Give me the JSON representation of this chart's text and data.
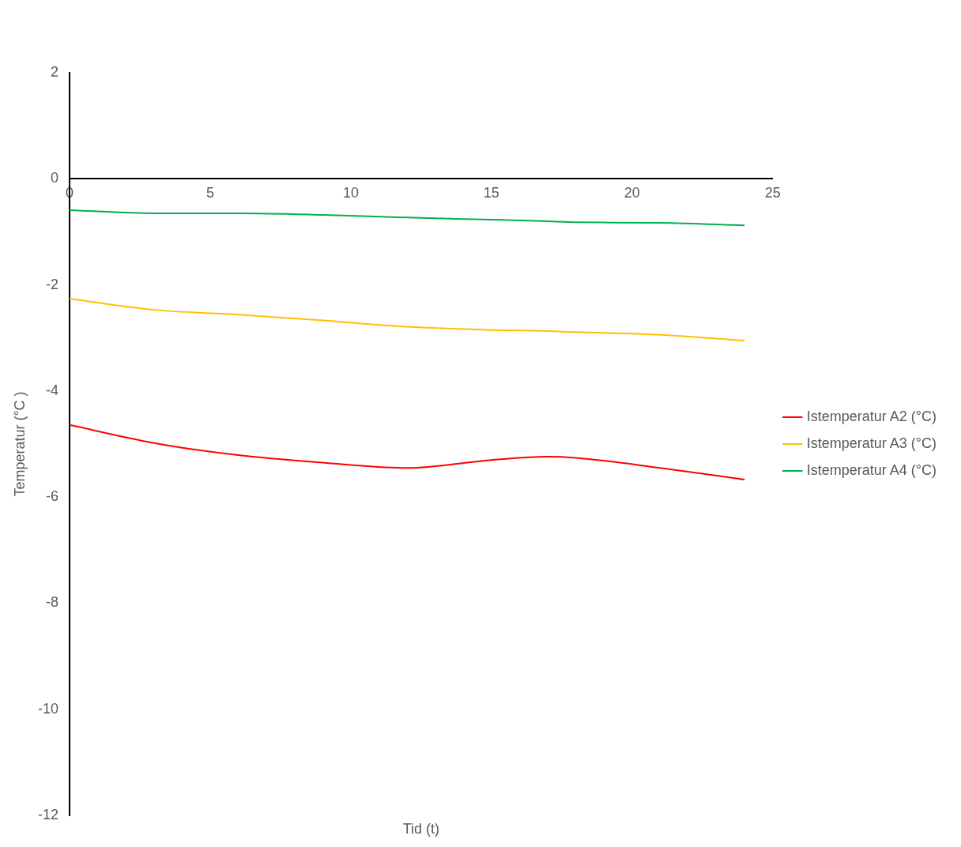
{
  "chart_data": {
    "type": "line",
    "xlabel": "Tid (t)",
    "ylabel": "Temperatur (°C )",
    "x": [
      0,
      3,
      6,
      9,
      12,
      15,
      17,
      18,
      21,
      24
    ],
    "series": [
      {
        "name": "Istemperatur A2 (°C)",
        "color": "#ff0000",
        "values": [
          -4.64,
          -4.98,
          -5.21,
          -5.35,
          -5.45,
          -5.3,
          -5.24,
          -5.26,
          -5.45,
          -5.67
        ]
      },
      {
        "name": "Istemperatur A3 (°C)",
        "color": "#ffc000",
        "values": [
          -2.26,
          -2.47,
          -2.56,
          -2.67,
          -2.79,
          -2.85,
          -2.87,
          -2.89,
          -2.94,
          -3.05
        ]
      },
      {
        "name": "Istemperatur A4 (°C)",
        "color": "#00b050",
        "values": [
          -0.59,
          -0.65,
          -0.65,
          -0.68,
          -0.73,
          -0.77,
          -0.8,
          -0.82,
          -0.83,
          -0.88
        ]
      }
    ],
    "xlim": [
      0,
      25
    ],
    "xticks": [
      0,
      5,
      10,
      15,
      20,
      25
    ],
    "ylim": [
      -12,
      2
    ],
    "yticks": [
      -12,
      -10,
      -8,
      -6,
      -4,
      -2,
      0,
      2
    ],
    "grid": false,
    "legend": "right",
    "marker": "none",
    "line_style": "solid"
  }
}
